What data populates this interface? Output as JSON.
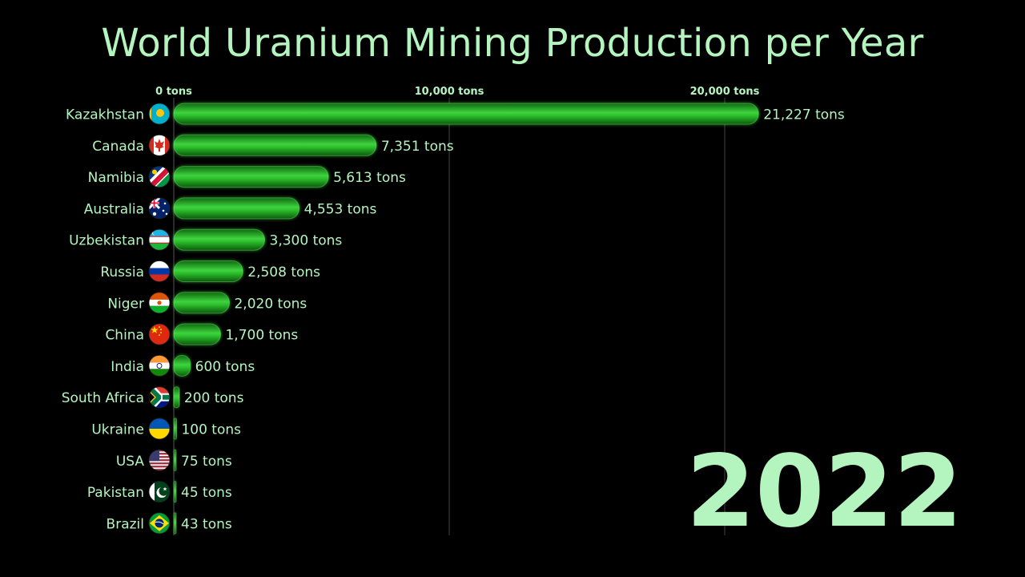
{
  "title": "World Uranium Mining Production per Year",
  "year": "2022",
  "colors": {
    "background": "#000000",
    "text": "#b4f5bf",
    "bar": "#22b322",
    "bar_highlight": "#5be85b",
    "gridline": "#444444"
  },
  "chart_data": {
    "type": "bar",
    "orientation": "horizontal",
    "title": "World Uranium Mining Production per Year",
    "xlabel": "",
    "ylabel": "",
    "xlim": [
      0,
      24000
    ],
    "unit": "tons",
    "ticks": [
      {
        "value": 0,
        "label": "0 tons"
      },
      {
        "value": 10000,
        "label": "10,000 tons"
      },
      {
        "value": 20000,
        "label": "20,000 tons"
      }
    ],
    "grid": true,
    "categories": [
      "Kazakhstan",
      "Canada",
      "Namibia",
      "Australia",
      "Uzbekistan",
      "Russia",
      "Niger",
      "China",
      "India",
      "South Africa",
      "Ukraine",
      "USA",
      "Pakistan",
      "Brazil"
    ],
    "values": [
      21227,
      7351,
      5613,
      4553,
      3300,
      2508,
      2020,
      1700,
      600,
      200,
      100,
      75,
      45,
      43
    ],
    "value_labels": [
      "21,227 tons",
      "7,351 tons",
      "5,613 tons",
      "4,553 tons",
      "3,300 tons",
      "2,508 tons",
      "2,020 tons",
      "1,700 tons",
      "600 tons",
      "200 tons",
      "100 tons",
      "75 tons",
      "45 tons",
      "43 tons"
    ],
    "flag_icons": [
      "kazakhstan-flag-icon",
      "canada-flag-icon",
      "namibia-flag-icon",
      "australia-flag-icon",
      "uzbekistan-flag-icon",
      "russia-flag-icon",
      "niger-flag-icon",
      "china-flag-icon",
      "india-flag-icon",
      "south-africa-flag-icon",
      "ukraine-flag-icon",
      "usa-flag-icon",
      "pakistan-flag-icon",
      "brazil-flag-icon"
    ]
  }
}
